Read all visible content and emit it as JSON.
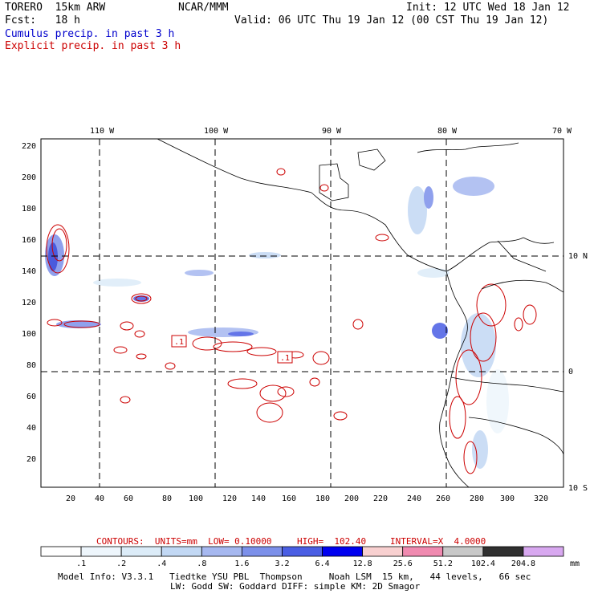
{
  "header": {
    "model": "TORERO  15km ARW",
    "org": "NCAR/MMM",
    "init": "Init: 12 UTC Wed 18 Jan 12",
    "fcst": "Fcst:   18 h",
    "valid": "Valid: 06 UTC Thu 19 Jan 12 (00 CST Thu 19 Jan 12)",
    "line_cumulus": "Cumulus precip. in past 3 h",
    "line_explicit": "Explicit precip. in past 3 h"
  },
  "axes": {
    "top_lon": [
      "110 W",
      "100 W",
      "90 W",
      "80 W",
      "70 W"
    ],
    "right_lat": [
      "10 N",
      "0",
      "10 S"
    ],
    "bottom_x": [
      "20",
      "40",
      "60",
      "80",
      "100",
      "120",
      "140",
      "160",
      "180",
      "200",
      "220",
      "240",
      "260",
      "280",
      "300",
      "320"
    ],
    "left_y": [
      "20",
      "40",
      "60",
      "80",
      "100",
      "120",
      "140",
      "160",
      "180",
      "200",
      "220"
    ]
  },
  "map_labels": {
    "contour_low_a": ".1",
    "contour_low_b": ".1"
  },
  "contours_info": {
    "title": "CONTOURS:  UNITS=mm  LOW= 0.10000",
    "high": "HIGH=  102.40",
    "interval": "INTERVAL=X  4.0000"
  },
  "colorbar": {
    "labels": [
      ".1",
      ".2",
      ".4",
      ".8",
      "1.6",
      "3.2",
      "6.4",
      "12.8",
      "25.6",
      "51.2",
      "102.4",
      "204.8"
    ],
    "unit": "mm",
    "colors": [
      "#ffffff",
      "#eef6fc",
      "#dcecf8",
      "#c2d8f4",
      "#a6b8f0",
      "#7c90ea",
      "#4a5ee4",
      "#0000f0",
      "#f8d0d0",
      "#f08ab0",
      "#c8c8c8",
      "#303030",
      "#d8a8f0"
    ]
  },
  "footer": {
    "line1": "Model Info: V3.3.1   Tiedtke YSU PBL  Thompson     Noah LSM  15 km,   44 levels,   66 sec",
    "line2": "LW: Godd SW: Goddard DIFF: simple KM: 2D Smagor"
  }
}
